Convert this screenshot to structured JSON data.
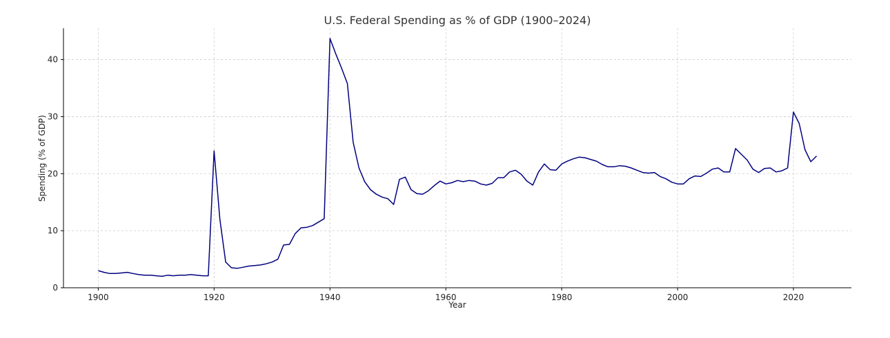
{
  "chart_data": {
    "type": "line",
    "title": "U.S. Federal Spending as % of GDP (1900–2024)",
    "xlabel": "Year",
    "ylabel": "Spending (% of GDP)",
    "xlim": [
      1894,
      2030
    ],
    "ylim": [
      0,
      45.5
    ],
    "xticks": [
      1900,
      1920,
      1940,
      1960,
      1980,
      2000,
      2020
    ],
    "yticks": [
      0,
      10,
      20,
      30,
      40
    ],
    "grid": true,
    "line_color": "#00007f",
    "series": [
      {
        "x": [
          1900,
          1901,
          1902,
          1903,
          1904,
          1905,
          1906,
          1907,
          1908,
          1909,
          1910,
          1911,
          1912,
          1913,
          1914,
          1915,
          1916,
          1917,
          1918,
          1919,
          1920,
          1921,
          1922,
          1923,
          1924,
          1925,
          1926,
          1927,
          1928,
          1929,
          1930,
          1931,
          1932,
          1933,
          1934,
          1935,
          1936,
          1937,
          1938,
          1939,
          1940,
          1941,
          1942,
          1943,
          1944,
          1945,
          1946,
          1947,
          1948,
          1949,
          1950,
          1951,
          1952,
          1953,
          1954,
          1955,
          1956,
          1957,
          1958,
          1959,
          1960,
          1961,
          1962,
          1963,
          1964,
          1965,
          1966,
          1967,
          1968,
          1969,
          1970,
          1971,
          1972,
          1973,
          1974,
          1975,
          1976,
          1977,
          1978,
          1979,
          1980,
          1981,
          1982,
          1983,
          1984,
          1985,
          1986,
          1987,
          1988,
          1989,
          1990,
          1991,
          1992,
          1993,
          1994,
          1995,
          1996,
          1997,
          1998,
          1999,
          2000,
          2001,
          2002,
          2003,
          2004,
          2005,
          2006,
          2007,
          2008,
          2009,
          2010,
          2011,
          2012,
          2013,
          2014,
          2015,
          2016,
          2017,
          2018,
          2019,
          2020,
          2021,
          2022,
          2023,
          2024
        ],
        "values": [
          3.0,
          2.7,
          2.5,
          2.5,
          2.6,
          2.7,
          2.5,
          2.3,
          2.2,
          2.2,
          2.1,
          2.0,
          2.2,
          2.1,
          2.2,
          2.2,
          2.3,
          2.2,
          2.1,
          2.1,
          24.0,
          12.0,
          4.5,
          3.5,
          3.4,
          3.6,
          3.8,
          3.9,
          4.0,
          4.2,
          4.5,
          5.0,
          7.5,
          7.6,
          9.5,
          10.5,
          10.6,
          10.9,
          11.5,
          12.1,
          43.7,
          41.0,
          38.5,
          35.8,
          25.5,
          21.0,
          18.6,
          17.2,
          16.4,
          15.9,
          15.6,
          14.6,
          19.0,
          19.4,
          17.2,
          16.5,
          16.4,
          17.0,
          17.9,
          18.7,
          18.2,
          18.4,
          18.8,
          18.6,
          18.8,
          18.7,
          18.2,
          18.0,
          18.3,
          19.3,
          19.3,
          20.3,
          20.6,
          19.9,
          18.7,
          18.0,
          20.3,
          21.7,
          20.7,
          20.6,
          21.7,
          22.2,
          22.6,
          22.9,
          22.8,
          22.5,
          22.2,
          21.6,
          21.2,
          21.2,
          21.4,
          21.3,
          21.0,
          20.6,
          20.2,
          20.1,
          20.2,
          19.5,
          19.1,
          18.5,
          18.2,
          18.2,
          19.1,
          19.6,
          19.5,
          20.1,
          20.8,
          21.0,
          20.3,
          20.3,
          24.4,
          23.4,
          22.4,
          20.8,
          20.2,
          20.9,
          21.0,
          20.3,
          20.5,
          21.0,
          30.8,
          28.8,
          24.2,
          22.1,
          23.1
        ]
      }
    ]
  }
}
